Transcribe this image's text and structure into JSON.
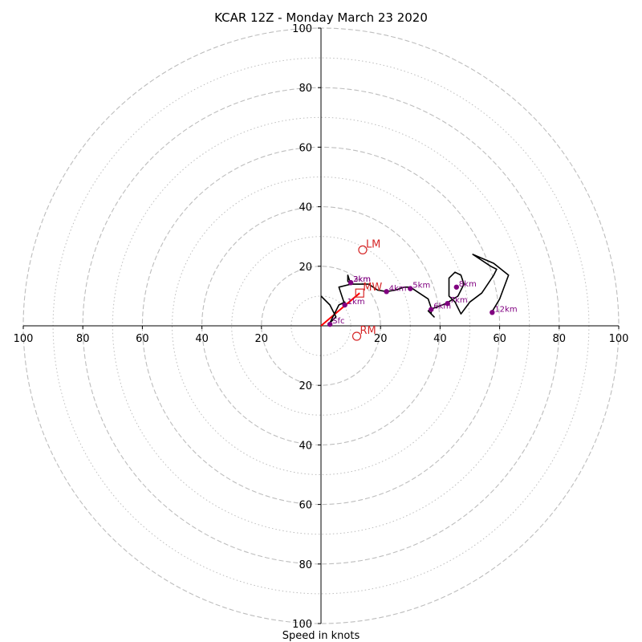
{
  "chart_data": {
    "type": "scatter",
    "title": "KCAR 12Z - Monday March 23 2020",
    "xlabel": "Speed in knots",
    "ylabel": "",
    "xlim": [
      -100,
      100
    ],
    "ylim": [
      -100,
      100
    ],
    "rings_dashed": [
      20,
      40,
      60,
      80,
      100
    ],
    "rings_dotted": [
      10,
      30,
      50,
      70,
      90
    ],
    "x_tick_labels": [
      "100",
      "80",
      "60",
      "40",
      "20",
      "20",
      "40",
      "60",
      "80",
      "100"
    ],
    "y_tick_labels": [
      "100",
      "80",
      "60",
      "40",
      "20",
      "20",
      "40",
      "60",
      "80",
      "100"
    ],
    "hodograph_trace": [
      [
        0,
        10
      ],
      [
        3,
        7
      ],
      [
        5,
        3
      ],
      [
        3,
        1
      ],
      [
        6,
        7
      ],
      [
        8,
        8
      ],
      [
        8,
        7
      ],
      [
        6,
        13
      ],
      [
        10,
        14
      ],
      [
        9,
        15
      ],
      [
        9,
        17
      ],
      [
        10,
        14
      ],
      [
        12,
        14
      ],
      [
        16,
        14
      ],
      [
        19,
        12
      ],
      [
        22,
        11.5
      ],
      [
        25,
        12
      ],
      [
        28,
        13
      ],
      [
        30,
        13
      ],
      [
        33,
        11
      ],
      [
        36,
        9
      ],
      [
        37,
        6
      ],
      [
        37,
        4
      ],
      [
        38,
        3
      ],
      [
        36,
        5
      ],
      [
        38,
        6
      ],
      [
        42,
        7.5
      ],
      [
        46,
        10
      ],
      [
        48,
        14
      ],
      [
        47,
        17
      ],
      [
        45,
        18
      ],
      [
        43,
        16
      ],
      [
        43,
        10
      ],
      [
        45,
        8
      ],
      [
        47,
        4
      ],
      [
        50,
        8
      ],
      [
        54,
        11
      ],
      [
        56,
        14
      ],
      [
        58,
        17
      ],
      [
        59,
        19
      ],
      [
        57,
        20
      ],
      [
        51,
        24
      ],
      [
        58,
        21
      ],
      [
        63,
        17
      ],
      [
        60,
        9
      ],
      [
        57,
        4
      ]
    ],
    "height_markers": [
      {
        "label": "Sfc",
        "x": 3,
        "y": 0.5
      },
      {
        "label": "1km",
        "x": 8,
        "y": 7
      },
      {
        "label": "2km",
        "x": 10,
        "y": 14.5
      },
      {
        "label": "3km",
        "x": 10,
        "y": 14.5
      },
      {
        "label": "4km",
        "x": 22,
        "y": 11.5
      },
      {
        "label": "5km",
        "x": 30,
        "y": 12.5
      },
      {
        "label": "6km",
        "x": 37,
        "y": 5.5
      },
      {
        "label": "7km",
        "x": 42.5,
        "y": 7.5
      },
      {
        "label": "8km",
        "x": 45.5,
        "y": 13
      },
      {
        "label": "12km",
        "x": 57.5,
        "y": 4.5
      }
    ],
    "motion_markers": [
      {
        "label": "LM",
        "x": 14,
        "y": 25.5,
        "shape": "circle"
      },
      {
        "label": "MW",
        "x": 13,
        "y": 11,
        "shape": "square"
      },
      {
        "label": "RM",
        "x": 12,
        "y": -3.5,
        "shape": "circle"
      }
    ],
    "shear_vector": {
      "from": [
        0,
        0
      ],
      "to": [
        13,
        11
      ]
    },
    "colors": {
      "trace": "#000000",
      "height_marker": "#800080",
      "motion_marker": "#d62728",
      "shear_vector": "#ff0000",
      "ring": "#bdbdbd",
      "axis": "#000000"
    }
  }
}
